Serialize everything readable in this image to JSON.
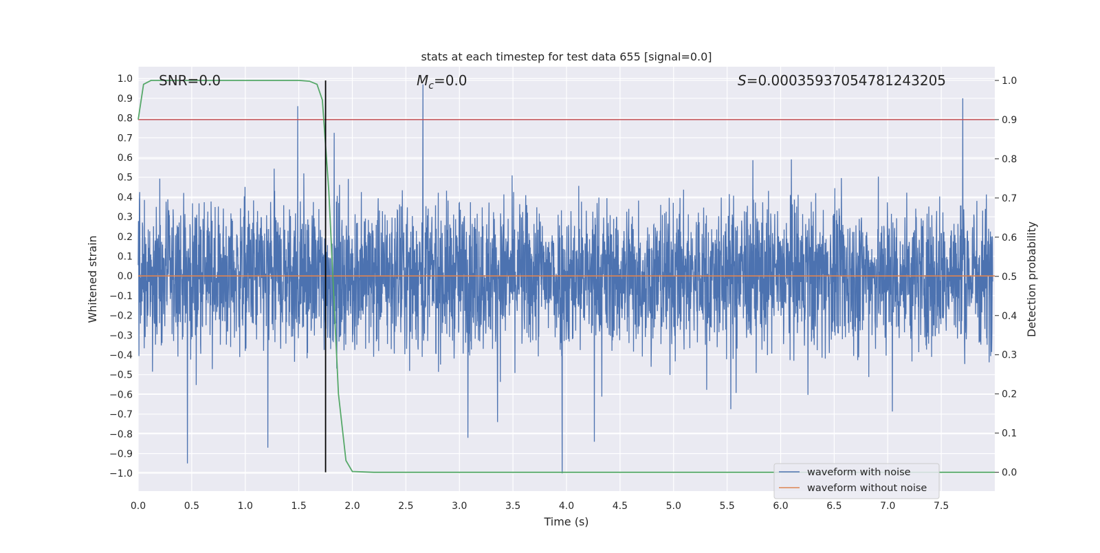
{
  "chart_data": {
    "type": "line",
    "title": "stats at each timestep for test data 655 [signal=0.0]",
    "xlabel": "Time (s)",
    "ylabel_left": "Whitened strain",
    "ylabel_right": "Detection probability",
    "xlim": [
      0.0,
      8.0
    ],
    "ylim_left": [
      -1.09,
      1.06
    ],
    "ylim_right": [
      -0.048,
      1.035
    ],
    "x_ticks": [
      0.0,
      0.5,
      1.0,
      1.5,
      2.0,
      2.5,
      3.0,
      3.5,
      4.0,
      4.5,
      5.0,
      5.5,
      6.0,
      6.5,
      7.0,
      7.5
    ],
    "x_tick_labels": [
      "0.0",
      "0.5",
      "1.0",
      "1.5",
      "2.0",
      "2.5",
      "3.0",
      "3.5",
      "4.0",
      "4.5",
      "5.0",
      "5.5",
      "6.0",
      "6.5",
      "7.0",
      "7.5"
    ],
    "y_left_ticks": [
      -1.0,
      -0.9,
      -0.8,
      -0.7,
      -0.6,
      -0.5,
      -0.4,
      -0.3,
      -0.2,
      -0.1,
      0.0,
      0.1,
      0.2,
      0.3,
      0.4,
      0.5,
      0.6,
      0.7,
      0.8,
      0.9,
      1.0
    ],
    "y_left_tick_labels": [
      "−1.0",
      "−0.9",
      "−0.8",
      "−0.7",
      "−0.6",
      "−0.5",
      "−0.4",
      "−0.3",
      "−0.2",
      "−0.1",
      "0.0",
      "0.1",
      "0.2",
      "0.3",
      "0.4",
      "0.5",
      "0.6",
      "0.7",
      "0.8",
      "0.9",
      "1.0"
    ],
    "y_right_ticks": [
      0.0,
      0.1,
      0.2,
      0.3,
      0.4,
      0.5,
      0.6,
      0.7,
      0.8,
      0.9,
      1.0
    ],
    "y_right_tick_labels": [
      "0.0",
      "0.1",
      "0.2",
      "0.3",
      "0.4",
      "0.5",
      "0.6",
      "0.7",
      "0.8",
      "0.9",
      "1.0"
    ],
    "annotations": {
      "snr": "SNR=0.0",
      "mc_symbol": "M",
      "mc_subscript": "c",
      "mc_value": "=0.0",
      "s_symbol": "S",
      "s_value": "=0.00035937054781243205"
    },
    "series": [
      {
        "name": "waveform with noise",
        "color": "#4c72b0",
        "axis": "left",
        "description_values": "dense noise between about -0.95 and 0.97",
        "spikes": [
          {
            "x": 0.46,
            "y": -0.95
          },
          {
            "x": 1.21,
            "y": -0.87
          },
          {
            "x": 1.49,
            "y": 0.86
          },
          {
            "x": 2.66,
            "y": 0.97
          },
          {
            "x": 3.08,
            "y": -0.82
          },
          {
            "x": 3.96,
            "y": -1.0
          },
          {
            "x": 4.26,
            "y": -0.84
          },
          {
            "x": 7.7,
            "y": 0.9
          }
        ]
      },
      {
        "name": "waveform without noise",
        "color": "#dd8452",
        "axis": "left",
        "x": [
          0.0,
          8.0
        ],
        "y": [
          0.0,
          0.0
        ]
      },
      {
        "name": "detection probability",
        "color": "#55a868",
        "axis": "right",
        "x": [
          0.0,
          0.05,
          0.12,
          0.3,
          0.6,
          1.0,
          1.3,
          1.5,
          1.6,
          1.67,
          1.72,
          1.78,
          1.87,
          1.94,
          2.0,
          2.2,
          3.0,
          8.0
        ],
        "y": [
          0.9,
          0.99,
          1.0,
          1.0,
          1.0,
          1.0,
          1.0,
          1.0,
          0.998,
          0.99,
          0.95,
          0.72,
          0.2,
          0.03,
          0.002,
          0.0,
          0.0,
          0.0
        ]
      },
      {
        "name": "threshold",
        "color": "#c44e52",
        "axis": "right",
        "x": [
          0.0,
          8.0
        ],
        "y": [
          0.9,
          0.9
        ]
      },
      {
        "name": "detection time marker",
        "color": "#000000",
        "axis": "right",
        "x": [
          1.75,
          1.75
        ],
        "y": [
          0.0,
          1.0
        ]
      }
    ],
    "legend": {
      "placement": "bottom-right",
      "entries": [
        {
          "label": "waveform with noise",
          "color": "#4c72b0"
        },
        {
          "label": "waveform without noise",
          "color": "#dd8452"
        }
      ]
    },
    "grid": true,
    "background": "#eaeaf2"
  }
}
